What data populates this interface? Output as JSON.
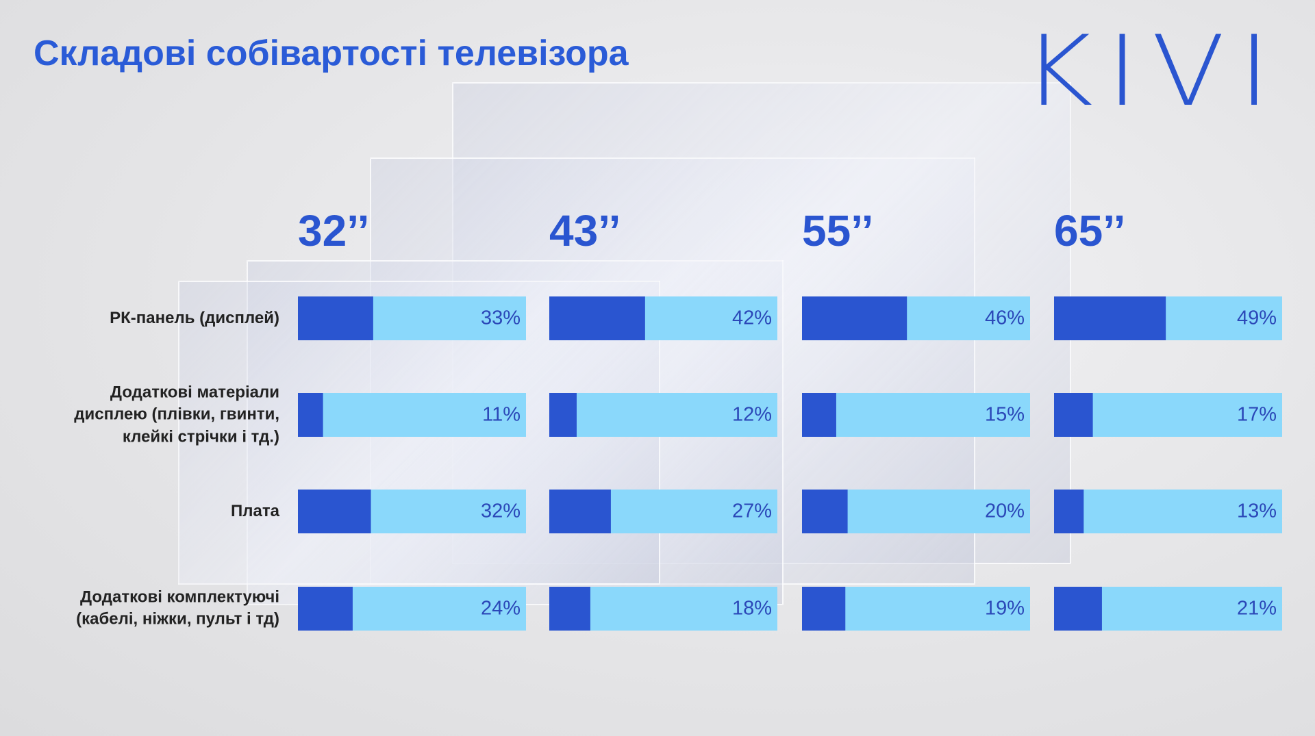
{
  "chart_data": {
    "type": "bar",
    "title": "Складові собівартості телевізора",
    "logo": "KIVI",
    "categories": [
      "РК-панель (дисплей)",
      "Додаткові матеріали\nдисплею (плівки, гвинти,\nклейкі стрічки і тд.)",
      "Плата",
      "Додаткові комплектуючі\n(кабелі, ніжки, пульт і тд)"
    ],
    "xlim": [
      0,
      100
    ],
    "color": "#2a55d0",
    "track_color": "#8ad8fb",
    "series": [
      {
        "name": "32’’",
        "values": [
          33,
          11,
          32,
          24
        ],
        "value_labels": [
          "33%",
          "11%",
          "32%",
          "24%"
        ]
      },
      {
        "name": "43’’",
        "values": [
          42,
          12,
          27,
          18
        ],
        "value_labels": [
          "42%",
          "12%",
          "27%",
          "18%"
        ]
      },
      {
        "name": "55’’",
        "values": [
          46,
          15,
          20,
          19
        ],
        "value_labels": [
          "46%",
          "15%",
          "20%",
          "19%"
        ]
      },
      {
        "name": "65’’",
        "values": [
          49,
          17,
          13,
          21
        ],
        "value_labels": [
          "49%",
          "17%",
          "13%",
          "21%"
        ]
      }
    ]
  }
}
